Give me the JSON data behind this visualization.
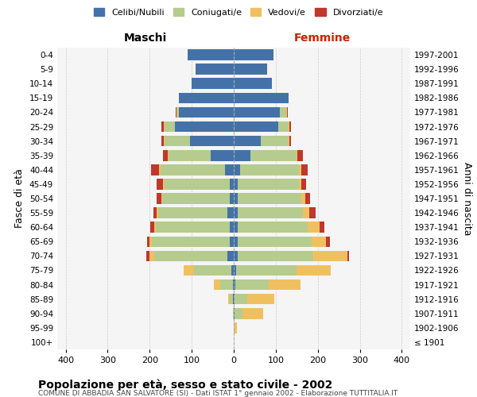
{
  "age_groups": [
    "100+",
    "95-99",
    "90-94",
    "85-89",
    "80-84",
    "75-79",
    "70-74",
    "65-69",
    "60-64",
    "55-59",
    "50-54",
    "45-49",
    "40-44",
    "35-39",
    "30-34",
    "25-29",
    "20-24",
    "15-19",
    "10-14",
    "5-9",
    "0-4"
  ],
  "birth_years": [
    "≤ 1901",
    "1902-1906",
    "1907-1911",
    "1912-1916",
    "1917-1921",
    "1922-1926",
    "1927-1931",
    "1932-1936",
    "1937-1941",
    "1942-1946",
    "1947-1951",
    "1952-1956",
    "1957-1961",
    "1962-1966",
    "1967-1971",
    "1972-1976",
    "1977-1981",
    "1982-1986",
    "1987-1991",
    "1992-1996",
    "1997-2001"
  ],
  "males": {
    "celibi": [
      0,
      0,
      0,
      1,
      2,
      5,
      15,
      10,
      10,
      15,
      10,
      10,
      20,
      55,
      105,
      140,
      130,
      130,
      100,
      90,
      110
    ],
    "coniugati": [
      0,
      0,
      2,
      8,
      30,
      90,
      175,
      185,
      175,
      165,
      160,
      155,
      155,
      100,
      60,
      25,
      5,
      0,
      0,
      0,
      0
    ],
    "vedovi": [
      0,
      0,
      0,
      5,
      15,
      25,
      10,
      5,
      5,
      3,
      3,
      3,
      3,
      2,
      2,
      2,
      2,
      0,
      0,
      0,
      0
    ],
    "divorziati": [
      0,
      0,
      0,
      0,
      0,
      0,
      8,
      7,
      8,
      8,
      10,
      15,
      18,
      12,
      5,
      5,
      2,
      0,
      0,
      0,
      0
    ]
  },
  "females": {
    "nubili": [
      0,
      0,
      2,
      2,
      3,
      5,
      10,
      10,
      10,
      10,
      10,
      10,
      15,
      40,
      65,
      105,
      110,
      130,
      90,
      80,
      95
    ],
    "coniugate": [
      0,
      2,
      18,
      30,
      80,
      145,
      180,
      175,
      165,
      155,
      150,
      145,
      140,
      110,
      65,
      25,
      15,
      0,
      0,
      0,
      0
    ],
    "vedove": [
      0,
      5,
      50,
      65,
      75,
      80,
      80,
      35,
      30,
      15,
      10,
      5,
      5,
      2,
      2,
      2,
      2,
      0,
      0,
      0,
      0
    ],
    "divorziate": [
      0,
      0,
      0,
      0,
      0,
      0,
      5,
      8,
      10,
      15,
      12,
      12,
      15,
      12,
      5,
      5,
      2,
      0,
      0,
      0,
      0
    ]
  },
  "colors": {
    "celibi": "#4472a8",
    "coniugati": "#b5cc8e",
    "vedovi": "#f0c060",
    "divorziati": "#c0382b"
  },
  "legend_labels": [
    "Celibi/Nubili",
    "Coniugati/e",
    "Vedovi/e",
    "Divorziati/e"
  ],
  "title": "Popolazione per età, sesso e stato civile - 2002",
  "subtitle": "COMUNE DI ABBADIA SAN SALVATORE (SI) - Dati ISTAT 1° gennaio 2002 - Elaborazione TUTTITALIA.IT",
  "xlabel_left": "Maschi",
  "xlabel_right": "Femmine",
  "ylabel_left": "Fasce di età",
  "ylabel_right": "Anni di nascita",
  "xlim": 420,
  "bg_color": "#ffffff",
  "grid_color": "#cccccc"
}
